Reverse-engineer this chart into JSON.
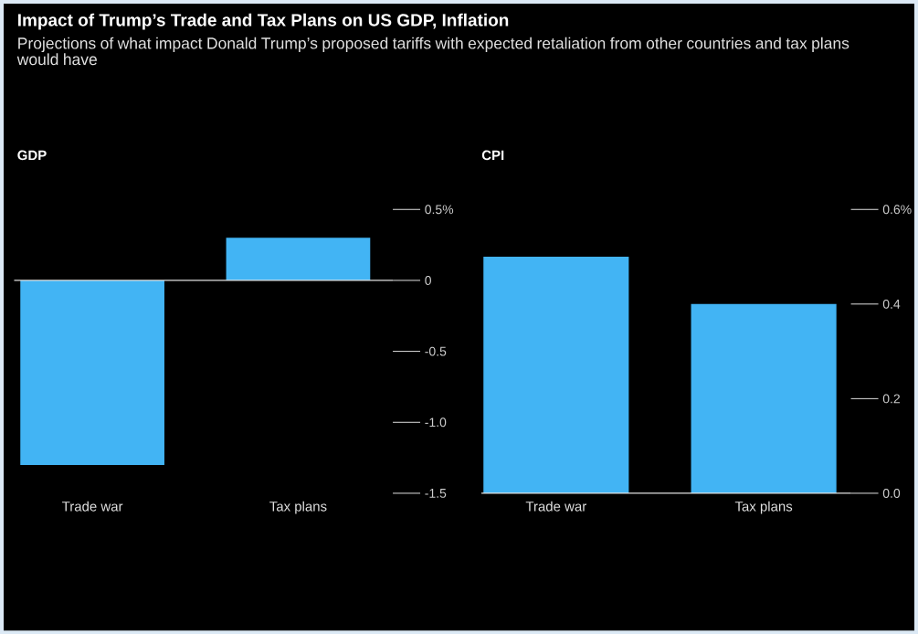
{
  "chart_data": [
    {
      "type": "bar",
      "title": "Impact of Trump’s Trade and Tax Plans on US GDP, Inflation",
      "subtitle": "Projections of what impact Donald Trump’s proposed tariffs with expected retaliation from other countries and tax plans would have",
      "ylabel": "GDP",
      "categories": [
        "Trade war",
        "Tax plans"
      ],
      "values": [
        -1.3,
        0.3
      ],
      "color": "#42b4f4",
      "ylim": [
        -1.5,
        0.5
      ],
      "yticks": [
        {
          "value": -1.5,
          "label": "-1.5"
        },
        {
          "value": -1.0,
          "label": "-1.0"
        },
        {
          "value": -0.5,
          "label": "-0.5"
        },
        0,
        {
          "value": 0.5,
          "label": "0.5%"
        }
      ]
    },
    {
      "type": "bar",
      "ylabel": "CPI",
      "categories": [
        "Trade war",
        "Tax plans"
      ],
      "values": [
        0.5,
        0.4
      ],
      "color": "#42b4f4",
      "ylim": [
        0,
        0.6
      ],
      "yticks": [
        {
          "value": 0,
          "label": "0.0"
        },
        0.2,
        0.4,
        {
          "value": 0.6,
          "label": "0.6%"
        }
      ]
    }
  ]
}
